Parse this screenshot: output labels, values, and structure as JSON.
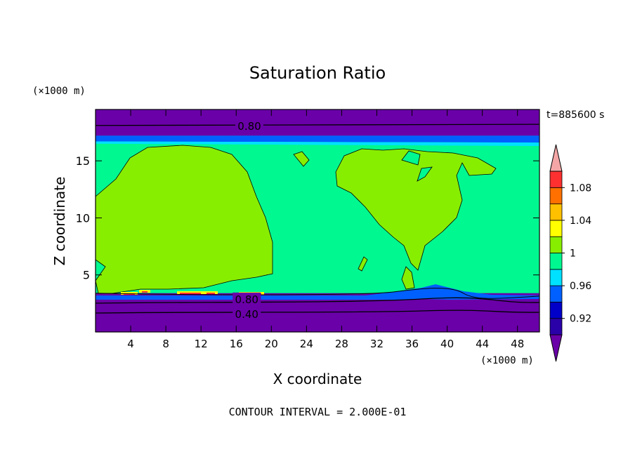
{
  "chart_data": {
    "type": "heatmap",
    "title": "Saturation Ratio",
    "xlabel": "X coordinate",
    "ylabel": "Z coordinate",
    "x_unit": "(×1000 m)",
    "y_unit": "(×1000 m)",
    "time_label": "t=885600 s",
    "footer": "CONTOUR INTERVAL = 2.000E-01",
    "xlim": [
      0,
      50.5
    ],
    "ylim": [
      0,
      19.5
    ],
    "x_ticks": [
      4,
      8,
      12,
      16,
      20,
      24,
      28,
      32,
      36,
      40,
      44,
      48
    ],
    "y_ticks": [
      5,
      10,
      15
    ],
    "contour_labels": [
      {
        "text": "0.80",
        "x": 17.5,
        "z": 18.1
      },
      {
        "text": "0.80",
        "x": 17.2,
        "z": 2.9
      },
      {
        "text": "0.40",
        "x": 17.2,
        "z": 1.6
      }
    ],
    "colorbar": {
      "labels": [
        "1.08",
        "1.04",
        "1",
        "0.96",
        "0.92"
      ],
      "levels": [
        {
          "color": "#6a00a8"
        },
        {
          "color": "#2a00a8"
        },
        {
          "color": "#0000c8"
        },
        {
          "color": "#0060ff"
        },
        {
          "color": "#00e0ff"
        },
        {
          "color": "#00f890"
        },
        {
          "color": "#88ee00"
        },
        {
          "color": "#ffff00"
        },
        {
          "color": "#ffc000"
        },
        {
          "color": "#ff7000"
        },
        {
          "color": "#ff3030"
        },
        {
          "color": "#f4a6a6"
        }
      ]
    },
    "field_colors": {
      "dry": "#6a00a8",
      "near_one": "#00f890",
      "supersat": "#88ee00",
      "edge_blue": "#0060ff",
      "edge_cyan": "#00e0ff",
      "hot_yellow": "#ffff00",
      "hot_red": "#ff3030"
    }
  }
}
